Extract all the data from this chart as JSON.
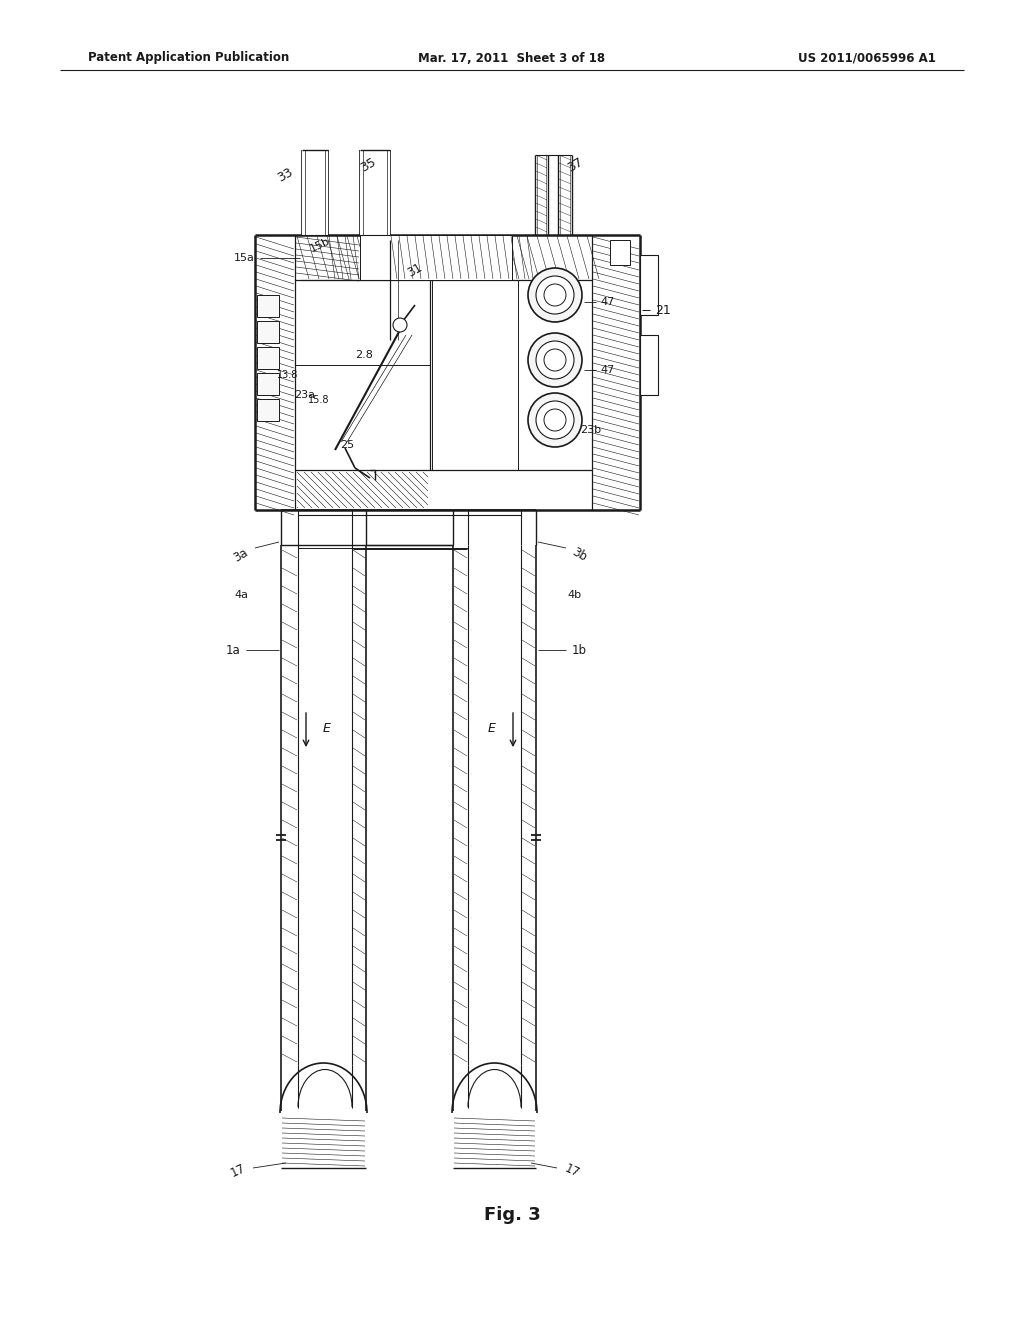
{
  "background_color": "#ffffff",
  "header_left": "Patent Application Publication",
  "header_center": "Mar. 17, 2011  Sheet 3 of 18",
  "header_right": "US 2011/0065996 A1",
  "caption": "Fig. 3",
  "line_color": "#1a1a1a"
}
